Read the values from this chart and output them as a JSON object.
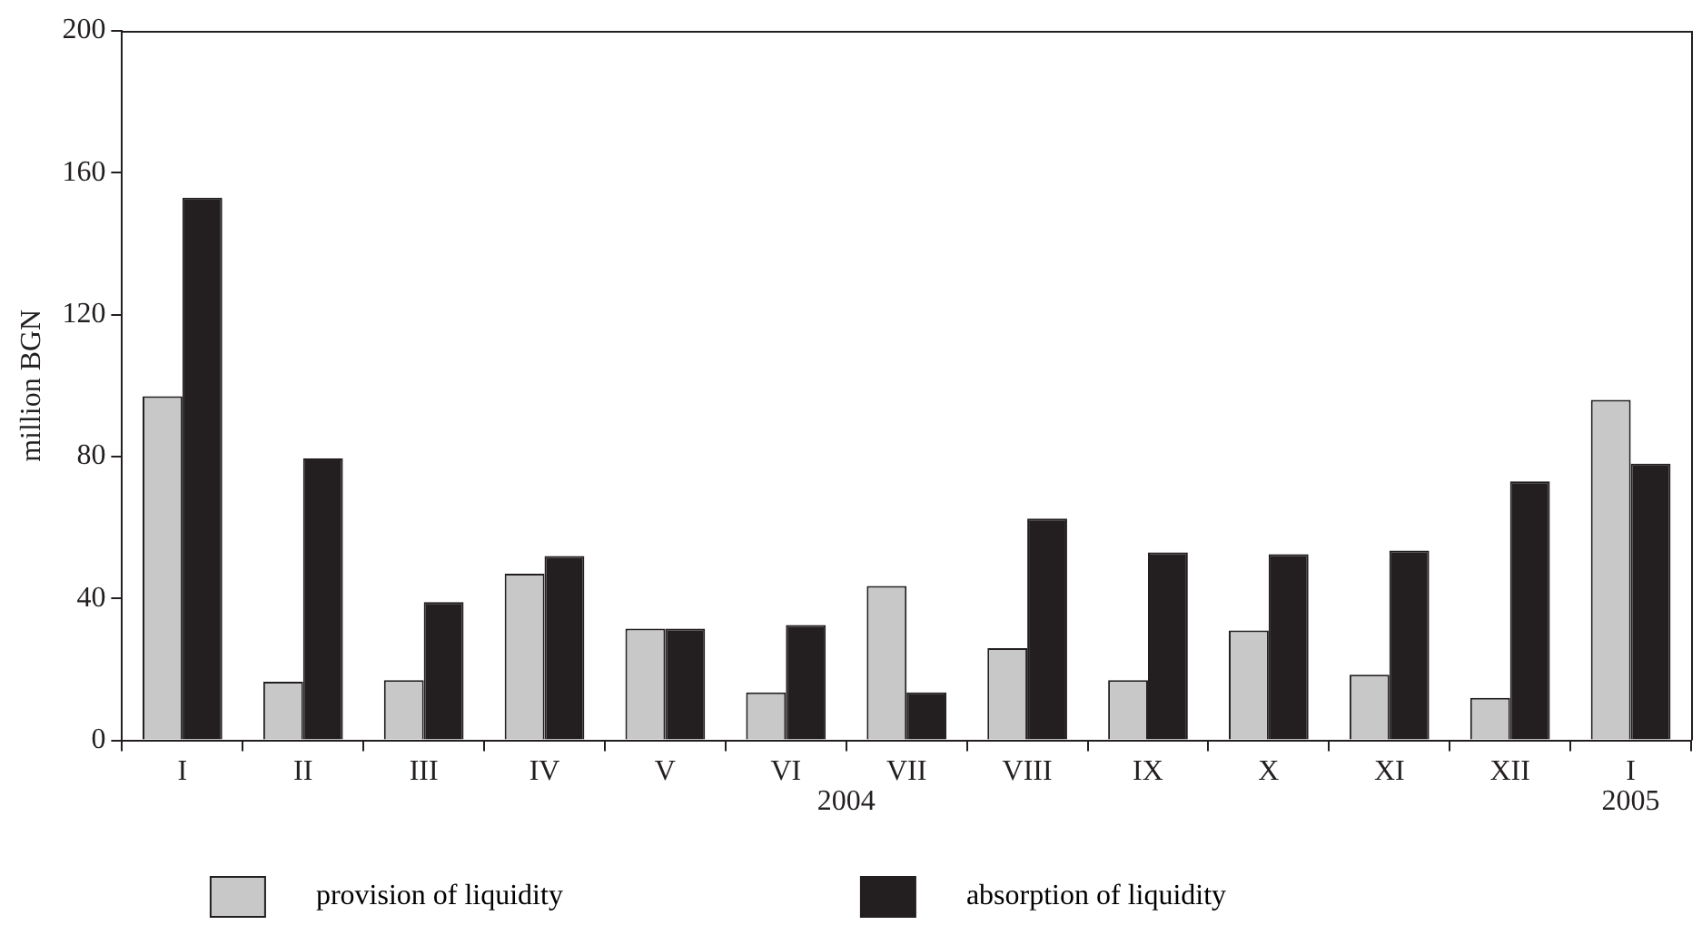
{
  "chart_data": {
    "type": "bar",
    "ylabel": "million BGN",
    "categories": [
      "I",
      "II",
      "III",
      "IV",
      "V",
      "VI",
      "VII",
      "VIII",
      "IX",
      "X",
      "XI",
      "XII",
      "I"
    ],
    "series": [
      {
        "name": "provision of liquidity",
        "color": "#c8c8c8",
        "values": [
          97,
          16.5,
          17,
          47,
          31.5,
          13.5,
          43.5,
          26,
          17,
          31,
          18.5,
          12,
          96
        ]
      },
      {
        "name": "absorption of liquidity",
        "color": "#231f20",
        "values": [
          153,
          79.5,
          39,
          52,
          31.5,
          32.5,
          13.5,
          62.5,
          53,
          52.5,
          53.5,
          73,
          78
        ]
      }
    ],
    "ylim": [
      0,
      200
    ],
    "yticks": [
      0,
      40,
      80,
      120,
      160,
      200
    ],
    "grid": false,
    "legend": "bottom",
    "annotations": [
      "2004",
      "2005"
    ]
  }
}
